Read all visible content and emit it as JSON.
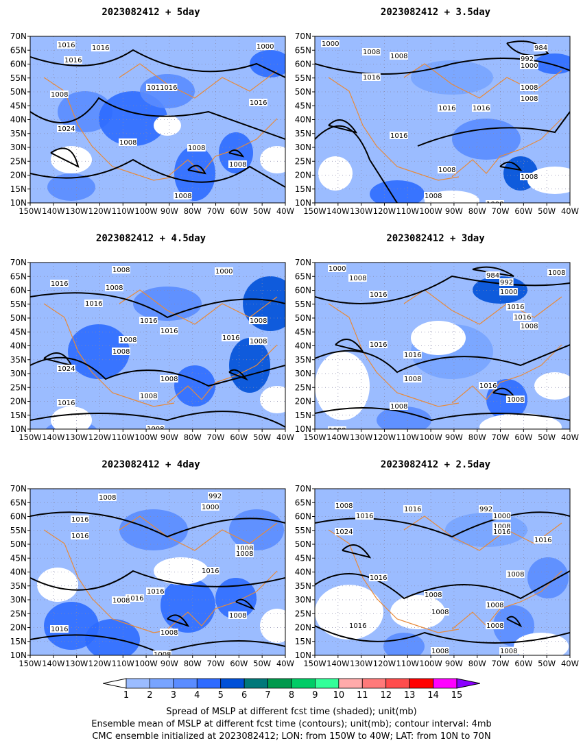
{
  "panels": [
    {
      "title": "2023082412 + 5day",
      "contour_labels": [
        "1016",
        "1016",
        "1016",
        "1008",
        "1011016",
        "1016",
        "1024",
        "1008",
        "1008",
        "1008",
        "1008",
        "1016",
        "1000"
      ]
    },
    {
      "title": "2023082412 + 3.5day",
      "contour_labels": [
        "1000",
        "1008",
        "1008",
        "984",
        "992",
        "1000",
        "1016",
        "1008",
        "1016",
        "1016",
        "1008",
        "1016",
        "1008",
        "1008",
        "1008",
        "1008"
      ]
    },
    {
      "title": "2023082412 + 4.5day",
      "contour_labels": [
        "1008",
        "1016",
        "1008",
        "1000",
        "1016",
        "1016",
        "1016",
        "1008",
        "1008",
        "1008",
        "1016",
        "1024",
        "1008",
        "1008",
        "1016",
        "1008",
        "1008"
      ]
    },
    {
      "title": "2023082412 + 3day",
      "contour_labels": [
        "1000",
        "1008",
        "984",
        "992",
        "1000",
        "1016",
        "1016",
        "1016",
        "1016",
        "1016",
        "1008",
        "1008",
        "1016",
        "1008",
        "1008",
        "1008",
        "1008"
      ]
    },
    {
      "title": "2023082412 + 4day",
      "contour_labels": [
        "1008",
        "992",
        "1000",
        "1016",
        "1016",
        "1016",
        "1008",
        "1008",
        "1016",
        "1016",
        "1008",
        "1016",
        "1008",
        "1008",
        "1008"
      ]
    },
    {
      "title": "2023082412 + 2.5day",
      "contour_labels": [
        "1008",
        "1016",
        "1016",
        "1024",
        "992",
        "1000",
        "1008",
        "1016",
        "1016",
        "1016",
        "1008",
        "1008",
        "1008",
        "1008",
        "1016",
        "1008",
        "1008",
        "1008"
      ]
    }
  ],
  "axes": {
    "lat_ticks": [
      "70N",
      "65N",
      "60N",
      "55N",
      "50N",
      "45N",
      "40N",
      "35N",
      "30N",
      "25N",
      "20N",
      "15N",
      "10N"
    ],
    "lon_ticks": [
      "150W",
      "140W",
      "130W",
      "120W",
      "110W",
      "100W",
      "90W",
      "80W",
      "70W",
      "60W",
      "50W",
      "40W"
    ]
  },
  "colorbar": {
    "levels": [
      "1",
      "2",
      "3",
      "4",
      "5",
      "6",
      "7",
      "8",
      "9",
      "10",
      "11",
      "12",
      "13",
      "14",
      "15"
    ],
    "colors": [
      "#ffffff",
      "#9bbcff",
      "#78a4ff",
      "#5a8cff",
      "#2e6bff",
      "#0050d8",
      "#00787a",
      "#00994d",
      "#00cc66",
      "#33ff99",
      "#ffaaaa",
      "#ff7a7a",
      "#ff4d4d",
      "#ff0000",
      "#ff00ff",
      "#8a00ff"
    ]
  },
  "caption": [
    "Spread of MSLP at different fcst time (shaded); unit(mb)",
    "Ensemble mean of MSLP at different fcst time (contours); unit(mb); contour interval: 4mb",
    "CMC ensemble initialized at 2023082412; LON: from 150W to 40W; LAT: from 10N to 70N"
  ]
}
